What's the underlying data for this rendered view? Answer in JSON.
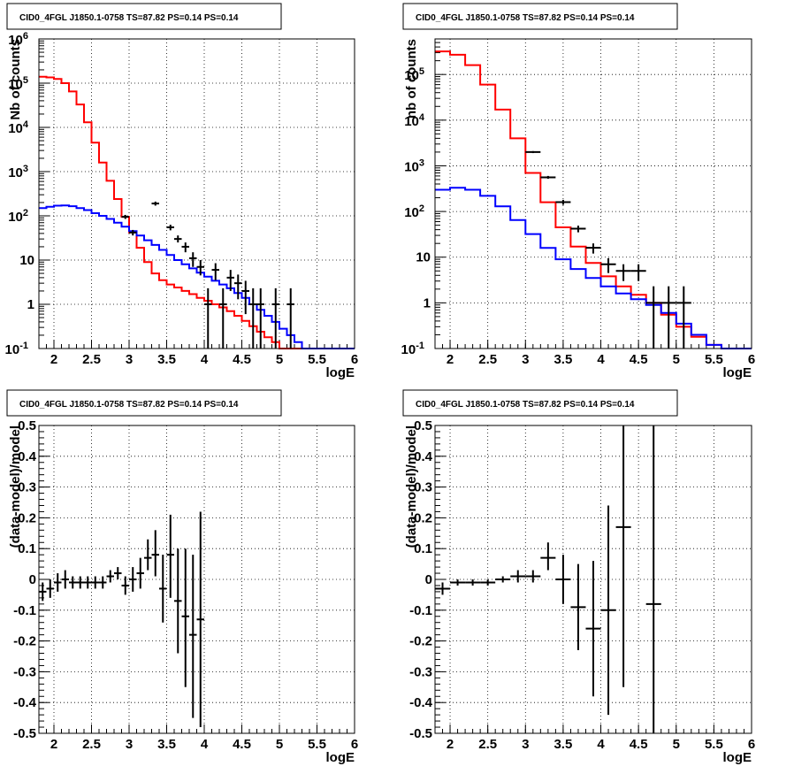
{
  "chart_data": [
    {
      "type": "line",
      "title": "CID0_4FGL J1850.1-0758 TS=87.82 PS=0.14 PS=0.14",
      "xlabel": "logE",
      "ylabel": "Nb of counts",
      "xlim": [
        1.8,
        6.0
      ],
      "ylim": [
        0.1,
        1000000
      ],
      "yscale": "log",
      "grid": true,
      "x_ticks": [
        "2",
        "2.5",
        "3",
        "3.5",
        "4",
        "4.5",
        "5",
        "5.5",
        "6"
      ],
      "y_ticks": [
        "10^-1",
        "1",
        "10",
        "10^2",
        "10^3",
        "10^4",
        "10^5",
        "10^6"
      ],
      "series": [
        {
          "kind": "step",
          "color": "#ff0000",
          "edges": [
            1.8,
            1.9,
            2.0,
            2.1,
            2.2,
            2.3,
            2.4,
            2.5,
            2.6,
            2.7,
            2.8,
            2.9,
            3.0,
            3.1,
            3.2,
            3.3,
            3.4,
            3.5,
            3.6,
            3.7,
            3.8,
            3.9,
            4.0,
            4.1,
            4.2,
            4.3,
            4.4,
            4.5,
            4.6,
            4.7,
            4.8,
            4.9,
            5.0,
            5.1,
            5.2,
            5.3,
            5.4,
            5.5,
            5.6,
            5.7,
            5.8,
            5.9,
            6.0
          ],
          "values": [
            140000,
            135000,
            125000,
            100000,
            65000,
            33000,
            13000,
            4500,
            1600,
            620,
            240,
            95,
            42,
            19,
            9,
            5,
            3.5,
            2.8,
            2.4,
            2.0,
            1.7,
            1.4,
            1.2,
            1.0,
            0.85,
            0.7,
            0.55,
            0.42,
            0.32,
            0.24,
            0.18,
            0.14,
            0.1,
            0.1,
            0.1,
            0.1,
            0.1,
            0.1,
            0.1,
            0.1,
            0.1,
            0.1
          ]
        },
        {
          "kind": "step",
          "color": "#0000ff",
          "edges": [
            1.8,
            1.9,
            2.0,
            2.1,
            2.2,
            2.3,
            2.4,
            2.5,
            2.6,
            2.7,
            2.8,
            2.9,
            3.0,
            3.1,
            3.2,
            3.3,
            3.4,
            3.5,
            3.6,
            3.7,
            3.8,
            3.9,
            4.0,
            4.1,
            4.2,
            4.3,
            4.4,
            4.5,
            4.6,
            4.7,
            4.8,
            4.9,
            5.0,
            5.1,
            5.2,
            5.3,
            5.4,
            5.5,
            5.6,
            5.7,
            5.8,
            5.9,
            6.0
          ],
          "values": [
            150,
            160,
            170,
            172,
            165,
            150,
            135,
            115,
            100,
            85,
            70,
            57,
            45,
            36,
            28,
            22,
            17,
            13,
            10,
            8,
            6.5,
            5.2,
            4.2,
            3.4,
            2.8,
            2.3,
            1.8,
            1.4,
            1.0,
            0.75,
            0.55,
            0.4,
            0.28,
            0.2,
            0.14,
            0.1,
            0.1,
            0.1,
            0.1,
            0.1,
            0.1,
            0.1
          ]
        },
        {
          "kind": "errorbar",
          "color": "#000000",
          "points": [
            {
              "x": 2.95,
              "y": 95,
              "xerr": 0.05,
              "ylo": 85,
              "yhi": 105
            },
            {
              "x": 3.05,
              "y": 42,
              "xerr": 0.05,
              "ylo": 36,
              "yhi": 48
            },
            {
              "x": 3.35,
              "y": 190,
              "xerr": 0.05,
              "ylo": 170,
              "yhi": 210
            },
            {
              "x": 3.55,
              "y": 55,
              "xerr": 0.05,
              "ylo": 47,
              "yhi": 63
            },
            {
              "x": 3.65,
              "y": 30,
              "xerr": 0.05,
              "ylo": 25,
              "yhi": 36
            },
            {
              "x": 3.75,
              "y": 20,
              "xerr": 0.05,
              "ylo": 15,
              "yhi": 25
            },
            {
              "x": 3.85,
              "y": 11,
              "xerr": 0.05,
              "ylo": 7,
              "yhi": 15
            },
            {
              "x": 3.95,
              "y": 7,
              "xerr": 0.05,
              "ylo": 4.5,
              "yhi": 10
            },
            {
              "x": 4.05,
              "y": 1,
              "xerr": 0.05,
              "ylo": 0.1,
              "yhi": 2.3
            },
            {
              "x": 4.15,
              "y": 6,
              "xerr": 0.05,
              "ylo": 3.5,
              "yhi": 8.5
            },
            {
              "x": 4.25,
              "y": 1,
              "xerr": 0.05,
              "ylo": 0.1,
              "yhi": 2.3
            },
            {
              "x": 4.35,
              "y": 4,
              "xerr": 0.05,
              "ylo": 2,
              "yhi": 6
            },
            {
              "x": 4.45,
              "y": 3,
              "xerr": 0.05,
              "ylo": 1.3,
              "yhi": 4.7
            },
            {
              "x": 4.55,
              "y": 2,
              "xerr": 0.05,
              "ylo": 0.6,
              "yhi": 3.4
            },
            {
              "x": 4.65,
              "y": 1,
              "xerr": 0.05,
              "ylo": 0.1,
              "yhi": 2.3
            },
            {
              "x": 4.75,
              "y": 1,
              "xerr": 0.05,
              "ylo": 0.1,
              "yhi": 2.3
            },
            {
              "x": 4.95,
              "y": 1,
              "xerr": 0.05,
              "ylo": 0.1,
              "yhi": 2.3
            },
            {
              "x": 5.15,
              "y": 1,
              "xerr": 0.05,
              "ylo": 0.1,
              "yhi": 2.3
            }
          ]
        }
      ]
    },
    {
      "type": "line",
      "title": "CID0_4FGL J1850.1-0758 TS=87.82 PS=0.14 PS=0.14",
      "xlabel": "logE",
      "ylabel": "nb of counts",
      "xlim": [
        1.8,
        6.0
      ],
      "ylim": [
        0.1,
        600000
      ],
      "yscale": "log",
      "grid": true,
      "x_ticks": [
        "2",
        "2.5",
        "3",
        "3.5",
        "4",
        "4.5",
        "5",
        "5.5",
        "6"
      ],
      "y_ticks": [
        "10^-1",
        "1",
        "10",
        "10^2",
        "10^3",
        "10^4",
        "10^5"
      ],
      "series": [
        {
          "kind": "step",
          "color": "#ff0000",
          "edges": [
            1.8,
            2.0,
            2.2,
            2.4,
            2.6,
            2.8,
            3.0,
            3.2,
            3.4,
            3.6,
            3.8,
            4.0,
            4.2,
            4.4,
            4.6,
            4.8,
            5.0,
            5.2,
            5.4,
            5.6,
            5.8,
            6.0
          ],
          "values": [
            320000,
            270000,
            160000,
            60000,
            17000,
            4000,
            700,
            160,
            45,
            17,
            7.5,
            3.8,
            2.3,
            1.5,
            1.0,
            0.55,
            0.3,
            0.18,
            0.12,
            0.1,
            0.1
          ]
        },
        {
          "kind": "step",
          "color": "#0000ff",
          "edges": [
            1.8,
            2.0,
            2.2,
            2.4,
            2.6,
            2.8,
            3.0,
            3.2,
            3.4,
            3.6,
            3.8,
            4.0,
            4.2,
            4.4,
            4.6,
            4.8,
            5.0,
            5.2,
            5.4,
            5.6,
            5.8,
            6.0
          ],
          "values": [
            300,
            330,
            300,
            220,
            130,
            65,
            32,
            16,
            9,
            5.5,
            3.5,
            2.3,
            1.6,
            1.2,
            0.9,
            0.6,
            0.35,
            0.2,
            0.12,
            0.1,
            0.1
          ]
        },
        {
          "kind": "errorbar",
          "color": "#000000",
          "points": [
            {
              "x": 3.1,
              "y": 2000,
              "xerr": 0.1,
              "ylo": 1900,
              "yhi": 2100
            },
            {
              "x": 3.3,
              "y": 560,
              "xerr": 0.1,
              "ylo": 520,
              "yhi": 600
            },
            {
              "x": 3.5,
              "y": 160,
              "xerr": 0.1,
              "ylo": 140,
              "yhi": 180
            },
            {
              "x": 3.7,
              "y": 42,
              "xerr": 0.1,
              "ylo": 35,
              "yhi": 49
            },
            {
              "x": 3.9,
              "y": 16,
              "xerr": 0.1,
              "ylo": 12,
              "yhi": 20
            },
            {
              "x": 4.1,
              "y": 7,
              "xerr": 0.1,
              "ylo": 4.5,
              "yhi": 9.5
            },
            {
              "x": 4.3,
              "y": 5,
              "xerr": 0.1,
              "ylo": 3,
              "yhi": 7
            },
            {
              "x": 4.5,
              "y": 5,
              "xerr": 0.1,
              "ylo": 3,
              "yhi": 7
            },
            {
              "x": 4.7,
              "y": 1,
              "xerr": 0.1,
              "ylo": 0.1,
              "yhi": 2.3
            },
            {
              "x": 4.9,
              "y": 1,
              "xerr": 0.1,
              "ylo": 0.1,
              "yhi": 2.3
            },
            {
              "x": 5.1,
              "y": 1,
              "xerr": 0.1,
              "ylo": 0.1,
              "yhi": 2.3
            }
          ]
        }
      ]
    },
    {
      "type": "scatter",
      "title": "CID0_4FGL J1850.1-0758 TS=87.82 PS=0.14 PS=0.14",
      "xlabel": "logE",
      "ylabel": "(data-model)/model",
      "xlim": [
        1.8,
        6.0
      ],
      "ylim": [
        -0.5,
        0.5
      ],
      "yscale": "linear",
      "grid": true,
      "x_ticks": [
        "2",
        "2.5",
        "3",
        "3.5",
        "4",
        "4.5",
        "5",
        "5.5",
        "6"
      ],
      "y_ticks": [
        "-0.5",
        "-0.4",
        "-0.3",
        "-0.2",
        "-0.1",
        "0",
        "0.1",
        "0.2",
        "0.3",
        "0.4",
        "0.5"
      ],
      "series": [
        {
          "kind": "errorbar",
          "color": "#000000",
          "points": [
            {
              "x": 1.85,
              "y": -0.04,
              "xerr": 0.05,
              "ylo": -0.07,
              "yhi": -0.01
            },
            {
              "x": 1.95,
              "y": -0.03,
              "xerr": 0.05,
              "ylo": -0.06,
              "yhi": 0.0
            },
            {
              "x": 2.05,
              "y": -0.01,
              "xerr": 0.05,
              "ylo": -0.04,
              "yhi": 0.02
            },
            {
              "x": 2.15,
              "y": 0.0,
              "xerr": 0.05,
              "ylo": -0.03,
              "yhi": 0.03
            },
            {
              "x": 2.25,
              "y": -0.01,
              "xerr": 0.05,
              "ylo": -0.03,
              "yhi": 0.01
            },
            {
              "x": 2.35,
              "y": -0.01,
              "xerr": 0.05,
              "ylo": -0.03,
              "yhi": 0.01
            },
            {
              "x": 2.45,
              "y": -0.01,
              "xerr": 0.05,
              "ylo": -0.03,
              "yhi": 0.01
            },
            {
              "x": 2.55,
              "y": -0.01,
              "xerr": 0.05,
              "ylo": -0.03,
              "yhi": 0.01
            },
            {
              "x": 2.65,
              "y": -0.01,
              "xerr": 0.05,
              "ylo": -0.03,
              "yhi": 0.01
            },
            {
              "x": 2.75,
              "y": 0.01,
              "xerr": 0.05,
              "ylo": -0.01,
              "yhi": 0.03
            },
            {
              "x": 2.85,
              "y": 0.02,
              "xerr": 0.05,
              "ylo": 0.0,
              "yhi": 0.04
            },
            {
              "x": 2.95,
              "y": -0.02,
              "xerr": 0.05,
              "ylo": -0.05,
              "yhi": 0.01
            },
            {
              "x": 3.05,
              "y": 0.0,
              "xerr": 0.05,
              "ylo": -0.04,
              "yhi": 0.04
            },
            {
              "x": 3.15,
              "y": 0.02,
              "xerr": 0.05,
              "ylo": -0.03,
              "yhi": 0.07
            },
            {
              "x": 3.25,
              "y": 0.07,
              "xerr": 0.05,
              "ylo": 0.03,
              "yhi": 0.13
            },
            {
              "x": 3.35,
              "y": 0.08,
              "xerr": 0.05,
              "ylo": 0.01,
              "yhi": 0.16
            },
            {
              "x": 3.45,
              "y": -0.03,
              "xerr": 0.05,
              "ylo": -0.14,
              "yhi": 0.08
            },
            {
              "x": 3.55,
              "y": 0.08,
              "xerr": 0.05,
              "ylo": -0.06,
              "yhi": 0.21
            },
            {
              "x": 3.65,
              "y": -0.07,
              "xerr": 0.05,
              "ylo": -0.24,
              "yhi": 0.1
            },
            {
              "x": 3.75,
              "y": -0.12,
              "xerr": 0.05,
              "ylo": -0.35,
              "yhi": 0.1
            },
            {
              "x": 3.85,
              "y": -0.18,
              "xerr": 0.05,
              "ylo": -0.45,
              "yhi": 0.08
            },
            {
              "x": 3.95,
              "y": -0.13,
              "xerr": 0.05,
              "ylo": -0.48,
              "yhi": 0.22
            }
          ]
        }
      ]
    },
    {
      "type": "scatter",
      "title": "CID0_4FGL J1850.1-0758 TS=87.82 PS=0.14 PS=0.14",
      "xlabel": "logE",
      "ylabel": "(data-model)/model",
      "xlim": [
        1.8,
        6.0
      ],
      "ylim": [
        -0.5,
        0.5
      ],
      "yscale": "linear",
      "grid": true,
      "x_ticks": [
        "2",
        "2.5",
        "3",
        "3.5",
        "4",
        "4.5",
        "5",
        "5.5",
        "6"
      ],
      "y_ticks": [
        "-0.5",
        "-0.4",
        "-0.3",
        "-0.2",
        "-0.1",
        "0",
        "0.1",
        "0.2",
        "0.3",
        "0.4",
        "0.5"
      ],
      "series": [
        {
          "kind": "errorbar",
          "color": "#000000",
          "points": [
            {
              "x": 1.9,
              "y": -0.03,
              "xerr": 0.1,
              "ylo": -0.05,
              "yhi": -0.01
            },
            {
              "x": 2.1,
              "y": -0.01,
              "xerr": 0.1,
              "ylo": -0.02,
              "yhi": 0.0
            },
            {
              "x": 2.3,
              "y": -0.01,
              "xerr": 0.1,
              "ylo": -0.02,
              "yhi": 0.0
            },
            {
              "x": 2.5,
              "y": -0.01,
              "xerr": 0.1,
              "ylo": -0.02,
              "yhi": 0.0
            },
            {
              "x": 2.7,
              "y": 0.0,
              "xerr": 0.1,
              "ylo": -0.01,
              "yhi": 0.01
            },
            {
              "x": 2.9,
              "y": 0.01,
              "xerr": 0.1,
              "ylo": -0.01,
              "yhi": 0.03
            },
            {
              "x": 3.1,
              "y": 0.01,
              "xerr": 0.1,
              "ylo": -0.01,
              "yhi": 0.03
            },
            {
              "x": 3.3,
              "y": 0.07,
              "xerr": 0.1,
              "ylo": 0.03,
              "yhi": 0.12
            },
            {
              "x": 3.5,
              "y": 0.0,
              "xerr": 0.1,
              "ylo": -0.08,
              "yhi": 0.08
            },
            {
              "x": 3.7,
              "y": -0.09,
              "xerr": 0.1,
              "ylo": -0.23,
              "yhi": 0.05
            },
            {
              "x": 3.9,
              "y": -0.16,
              "xerr": 0.1,
              "ylo": -0.38,
              "yhi": 0.06
            },
            {
              "x": 4.1,
              "y": -0.1,
              "xerr": 0.1,
              "ylo": -0.44,
              "yhi": 0.24
            },
            {
              "x": 4.3,
              "y": 0.17,
              "xerr": 0.1,
              "ylo": -0.35,
              "yhi": 0.5
            },
            {
              "x": 4.7,
              "y": -0.08,
              "xerr": 0.1,
              "ylo": -0.5,
              "yhi": 0.5
            }
          ]
        }
      ]
    }
  ]
}
